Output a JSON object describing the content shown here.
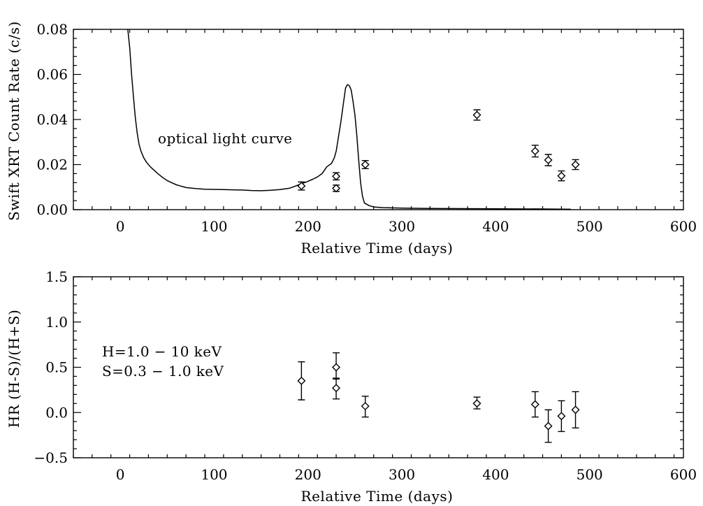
{
  "chart_data": [
    {
      "type": "scatter",
      "title": "",
      "xlabel": "Relative Time (days)",
      "ylabel": "Swift XRT  Count Rate (c/s)",
      "xlim": [
        -50,
        600
      ],
      "ylim": [
        0.0,
        0.08
      ],
      "x_ticks": [
        0,
        100,
        200,
        300,
        400,
        500,
        600
      ],
      "x_tick_labels": [
        "0",
        "100",
        "200",
        "300",
        "400",
        "500",
        "600"
      ],
      "y_ticks": [
        0.0,
        0.02,
        0.04,
        0.06,
        0.08
      ],
      "y_tick_labels": [
        "0.00",
        "0.02",
        "0.04",
        "0.06",
        "0.08"
      ],
      "grid": false,
      "annotations": [
        {
          "text": "optical light curve",
          "x": 42,
          "y": 0.0303
        }
      ],
      "series": [
        {
          "style": "line",
          "x": [
            8,
            10,
            12,
            14,
            16,
            18,
            20,
            22,
            25,
            28,
            32,
            36,
            40,
            45,
            50,
            55,
            60,
            70,
            80,
            90,
            100,
            110,
            120,
            130,
            140,
            150,
            160,
            170,
            180,
            185,
            190,
            195,
            200,
            205,
            210,
            215,
            220,
            225,
            228,
            230,
            232,
            235,
            238,
            240,
            242,
            244,
            246,
            248,
            250,
            252,
            254,
            256,
            258,
            260,
            265,
            270,
            280,
            300,
            320,
            350,
            400,
            450,
            480
          ],
          "y": [
            0.08,
            0.072,
            0.06,
            0.05,
            0.041,
            0.034,
            0.029,
            0.026,
            0.023,
            0.021,
            0.019,
            0.0175,
            0.016,
            0.0143,
            0.0129,
            0.0119,
            0.011,
            0.0098,
            0.0094,
            0.0091,
            0.009,
            0.0089,
            0.0088,
            0.0087,
            0.0085,
            0.0084,
            0.0086,
            0.0089,
            0.0095,
            0.0102,
            0.011,
            0.0118,
            0.0126,
            0.0135,
            0.0145,
            0.016,
            0.019,
            0.0205,
            0.023,
            0.026,
            0.031,
            0.039,
            0.048,
            0.054,
            0.0555,
            0.055,
            0.053,
            0.048,
            0.042,
            0.033,
            0.022,
            0.012,
            0.006,
            0.003,
            0.0018,
            0.0012,
            0.0009,
            0.0007,
            0.0006,
            0.0005,
            0.0004,
            0.0003,
            0.0002
          ]
        },
        {
          "style": "points",
          "marker": "diamond",
          "points": [
            {
              "x": 193,
              "y": 0.0105,
              "err": 0.0018
            },
            {
              "x": 230,
              "y": 0.0148,
              "err": 0.0016
            },
            {
              "x": 230,
              "y": 0.0095,
              "err": 0.0014
            },
            {
              "x": 261,
              "y": 0.02,
              "err": 0.0018
            },
            {
              "x": 380,
              "y": 0.042,
              "err": 0.0023
            },
            {
              "x": 442,
              "y": 0.026,
              "err": 0.0026
            },
            {
              "x": 456,
              "y": 0.022,
              "err": 0.0025
            },
            {
              "x": 470,
              "y": 0.015,
              "err": 0.0022
            },
            {
              "x": 485,
              "y": 0.02,
              "err": 0.0022
            }
          ]
        }
      ]
    },
    {
      "type": "scatter",
      "title": "",
      "xlabel": "Relative Time (days)",
      "ylabel": "HR (H-S)/(H+S)",
      "xlim": [
        -50,
        600
      ],
      "ylim": [
        -0.5,
        1.5
      ],
      "x_ticks": [
        0,
        100,
        200,
        300,
        400,
        500,
        600
      ],
      "x_tick_labels": [
        "0",
        "100",
        "200",
        "300",
        "400",
        "500",
        "600"
      ],
      "y_ticks": [
        -0.5,
        0.0,
        0.5,
        1.0,
        1.5
      ],
      "y_tick_labels": [
        "−0.5",
        "0.0",
        "0.5",
        "1.0",
        "1.5"
      ],
      "grid": false,
      "annotations": [
        {
          "text": "H=1.0 − 10 keV",
          "x": -20,
          "y": 0.65
        },
        {
          "text": "S=0.3 − 1.0 keV",
          "x": -20,
          "y": 0.43
        }
      ],
      "series": [
        {
          "style": "points",
          "marker": "diamond",
          "points": [
            {
              "x": 193,
              "y": 0.35,
              "lo": 0.14,
              "hi": 0.56
            },
            {
              "x": 230,
              "y": 0.5,
              "lo": 0.38,
              "hi": 0.66
            },
            {
              "x": 230,
              "y": 0.27,
              "lo": 0.15,
              "hi": 0.37
            },
            {
              "x": 261,
              "y": 0.07,
              "lo": -0.05,
              "hi": 0.18
            },
            {
              "x": 380,
              "y": 0.1,
              "lo": 0.04,
              "hi": 0.17
            },
            {
              "x": 442,
              "y": 0.09,
              "lo": -0.05,
              "hi": 0.23
            },
            {
              "x": 456,
              "y": -0.15,
              "lo": -0.33,
              "hi": 0.03
            },
            {
              "x": 470,
              "y": -0.04,
              "lo": -0.21,
              "hi": 0.13
            },
            {
              "x": 485,
              "y": 0.03,
              "lo": -0.17,
              "hi": 0.23
            }
          ]
        }
      ]
    }
  ]
}
